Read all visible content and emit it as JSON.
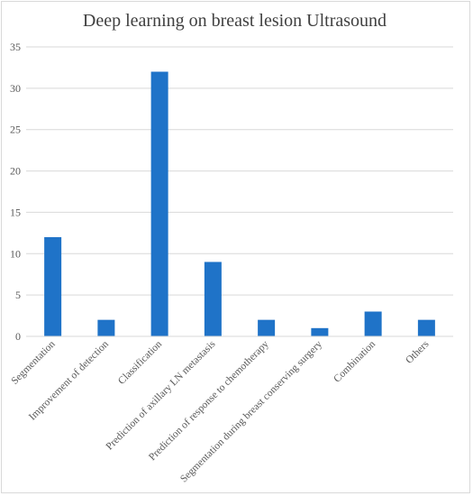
{
  "chart_data": {
    "type": "bar",
    "title": "Deep learning on breast lesion Ultrasound",
    "categories": [
      "Segmentation",
      "Improvement of detection",
      "Classification",
      "Prediction of axillary LN metastasis",
      "Prediction of response to chemotherapy",
      "Segmentation during breast conserving surgery",
      "Combination",
      "Others"
    ],
    "values": [
      12,
      2,
      32,
      9,
      2,
      1,
      3,
      2
    ],
    "ylim": [
      0,
      35
    ],
    "yticks": [
      0,
      5,
      10,
      15,
      20,
      25,
      30,
      35
    ],
    "grid": true,
    "legend": "none",
    "bar_color": "#1f73c8",
    "grid_color": "#d9d9d9"
  }
}
